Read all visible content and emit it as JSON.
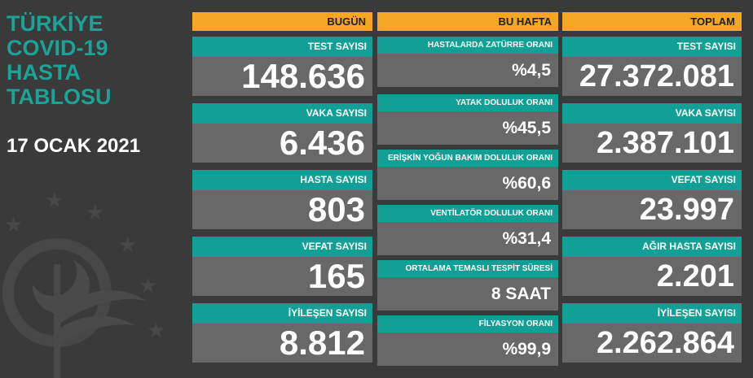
{
  "header": {
    "title_lines": [
      "TÜRKİYE",
      "COVID-19",
      "HASTA",
      "TABLOSU"
    ],
    "date": "17 OCAK 2021"
  },
  "columns": [
    {
      "title": "BUGÜN",
      "items": [
        {
          "label": "TEST SAYISI",
          "value": "148.636"
        },
        {
          "label": "VAKA SAYISI",
          "value": "6.436"
        },
        {
          "label": "HASTA SAYISI",
          "value": "803"
        },
        {
          "label": "VEFAT SAYISI",
          "value": "165"
        },
        {
          "label": "İYİLEŞEN SAYISI",
          "value": "8.812"
        }
      ]
    },
    {
      "title": "BU HAFTA",
      "items": [
        {
          "label": "HASTALARDA ZATÜRRE ORANI",
          "value": "%4,5"
        },
        {
          "label": "YATAK DOLULUK ORANI",
          "value": "%45,5"
        },
        {
          "label": "ERİŞKİN YOĞUN BAKIM DOLULUK ORANI",
          "value": "%60,6"
        },
        {
          "label": "VENTİLATÖR DOLULUK ORANI",
          "value": "%31,4"
        },
        {
          "label": "ORTALAMA TEMASLI TESPİT SÜRESİ",
          "value": "8 SAAT"
        },
        {
          "label": "FİLYASYON ORANI",
          "value": "%99,9"
        }
      ]
    },
    {
      "title": "TOPLAM",
      "items": [
        {
          "label": "TEST SAYISI",
          "value": "27.372.081"
        },
        {
          "label": "VAKA SAYISI",
          "value": "2.387.101"
        },
        {
          "label": "VEFAT SAYISI",
          "value": "23.997"
        },
        {
          "label": "AĞIR HASTA SAYISI",
          "value": "2.201"
        },
        {
          "label": "İYİLEŞEN SAYISI",
          "value": "2.262.864"
        }
      ]
    }
  ]
}
